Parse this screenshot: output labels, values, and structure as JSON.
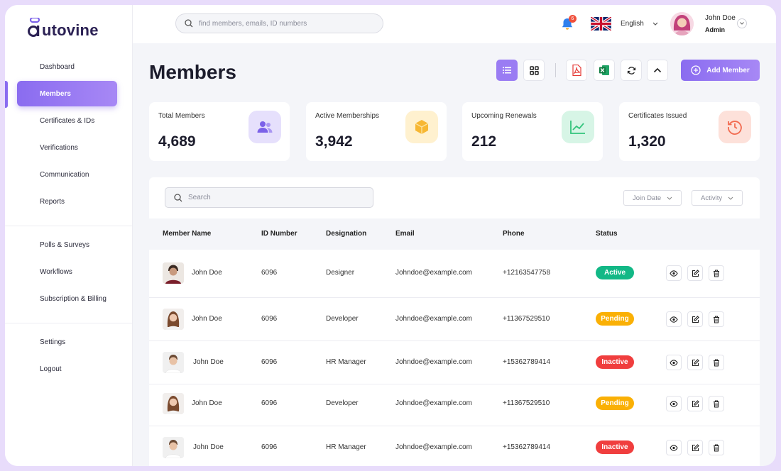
{
  "app": {
    "logo_text": "utovine"
  },
  "colors": {
    "accent": "#8a6cf0",
    "active": "#12b886",
    "pending": "#fab005",
    "inactive": "#f03e3e"
  },
  "sidebar": {
    "items": [
      {
        "label": "Dashboard"
      },
      {
        "label": "Members"
      },
      {
        "label": "Certificates & IDs"
      },
      {
        "label": "Verifications"
      },
      {
        "label": "Communication"
      },
      {
        "label": "Reports"
      },
      {
        "label": "Polls & Surveys"
      },
      {
        "label": "Workflows"
      },
      {
        "label": "Subscription & Billing"
      },
      {
        "label": "Settings"
      },
      {
        "label": "Logout"
      }
    ]
  },
  "header": {
    "search_placeholder": "find members, emails, ID numbers",
    "notifications_count": "6",
    "language": "English",
    "user_name": "John Doe",
    "user_role": "Admin"
  },
  "page": {
    "title": "Members",
    "add_button": "Add Member"
  },
  "stats": [
    {
      "label": "Total Members",
      "value": "4,689",
      "icon": "users-icon",
      "bg": "#e6e0fc",
      "fg": "#7b61e8"
    },
    {
      "label": "Active Memberships",
      "value": "3,942",
      "icon": "box-icon",
      "bg": "#fff1cf",
      "fg": "#f7b733"
    },
    {
      "label": "Upcoming Renewals",
      "value": "212",
      "icon": "chart-line-icon",
      "bg": "#d7f5e6",
      "fg": "#33c47c"
    },
    {
      "label": "Certificates Issued",
      "value": "1,320",
      "icon": "history-icon",
      "bg": "#fde1da",
      "fg": "#f26b50"
    }
  ],
  "table": {
    "search_placeholder": "Search",
    "filters": [
      "Join Date",
      "Activity"
    ],
    "columns": [
      "Member Name",
      "ID Number",
      "Designation",
      "Email",
      "Phone",
      "Status"
    ],
    "rows": [
      {
        "name": "John Doe",
        "id": "6096",
        "designation": "Designer",
        "email": "Johndoe@example.com",
        "phone": "+12163547758",
        "status": "Active",
        "status_color": "#12b886",
        "avatar": "man-dark"
      },
      {
        "name": "John Doe",
        "id": "6096",
        "designation": "Developer",
        "email": "Johndoe@example.com",
        "phone": "+11367529510",
        "status": "Pending",
        "status_color": "#fab005",
        "avatar": "woman"
      },
      {
        "name": "John Doe",
        "id": "6096",
        "designation": "HR Manager",
        "email": "Johndoe@example.com",
        "phone": "+15362789414",
        "status": "Inactive",
        "status_color": "#f03e3e",
        "avatar": "man-light"
      },
      {
        "name": "John Doe",
        "id": "6096",
        "designation": "Developer",
        "email": "Johndoe@example.com",
        "phone": "+11367529510",
        "status": "Pending",
        "status_color": "#fab005",
        "avatar": "woman"
      },
      {
        "name": "John Doe",
        "id": "6096",
        "designation": "HR Manager",
        "email": "Johndoe@example.com",
        "phone": "+15362789414",
        "status": "Inactive",
        "status_color": "#f03e3e",
        "avatar": "man-light"
      }
    ]
  }
}
